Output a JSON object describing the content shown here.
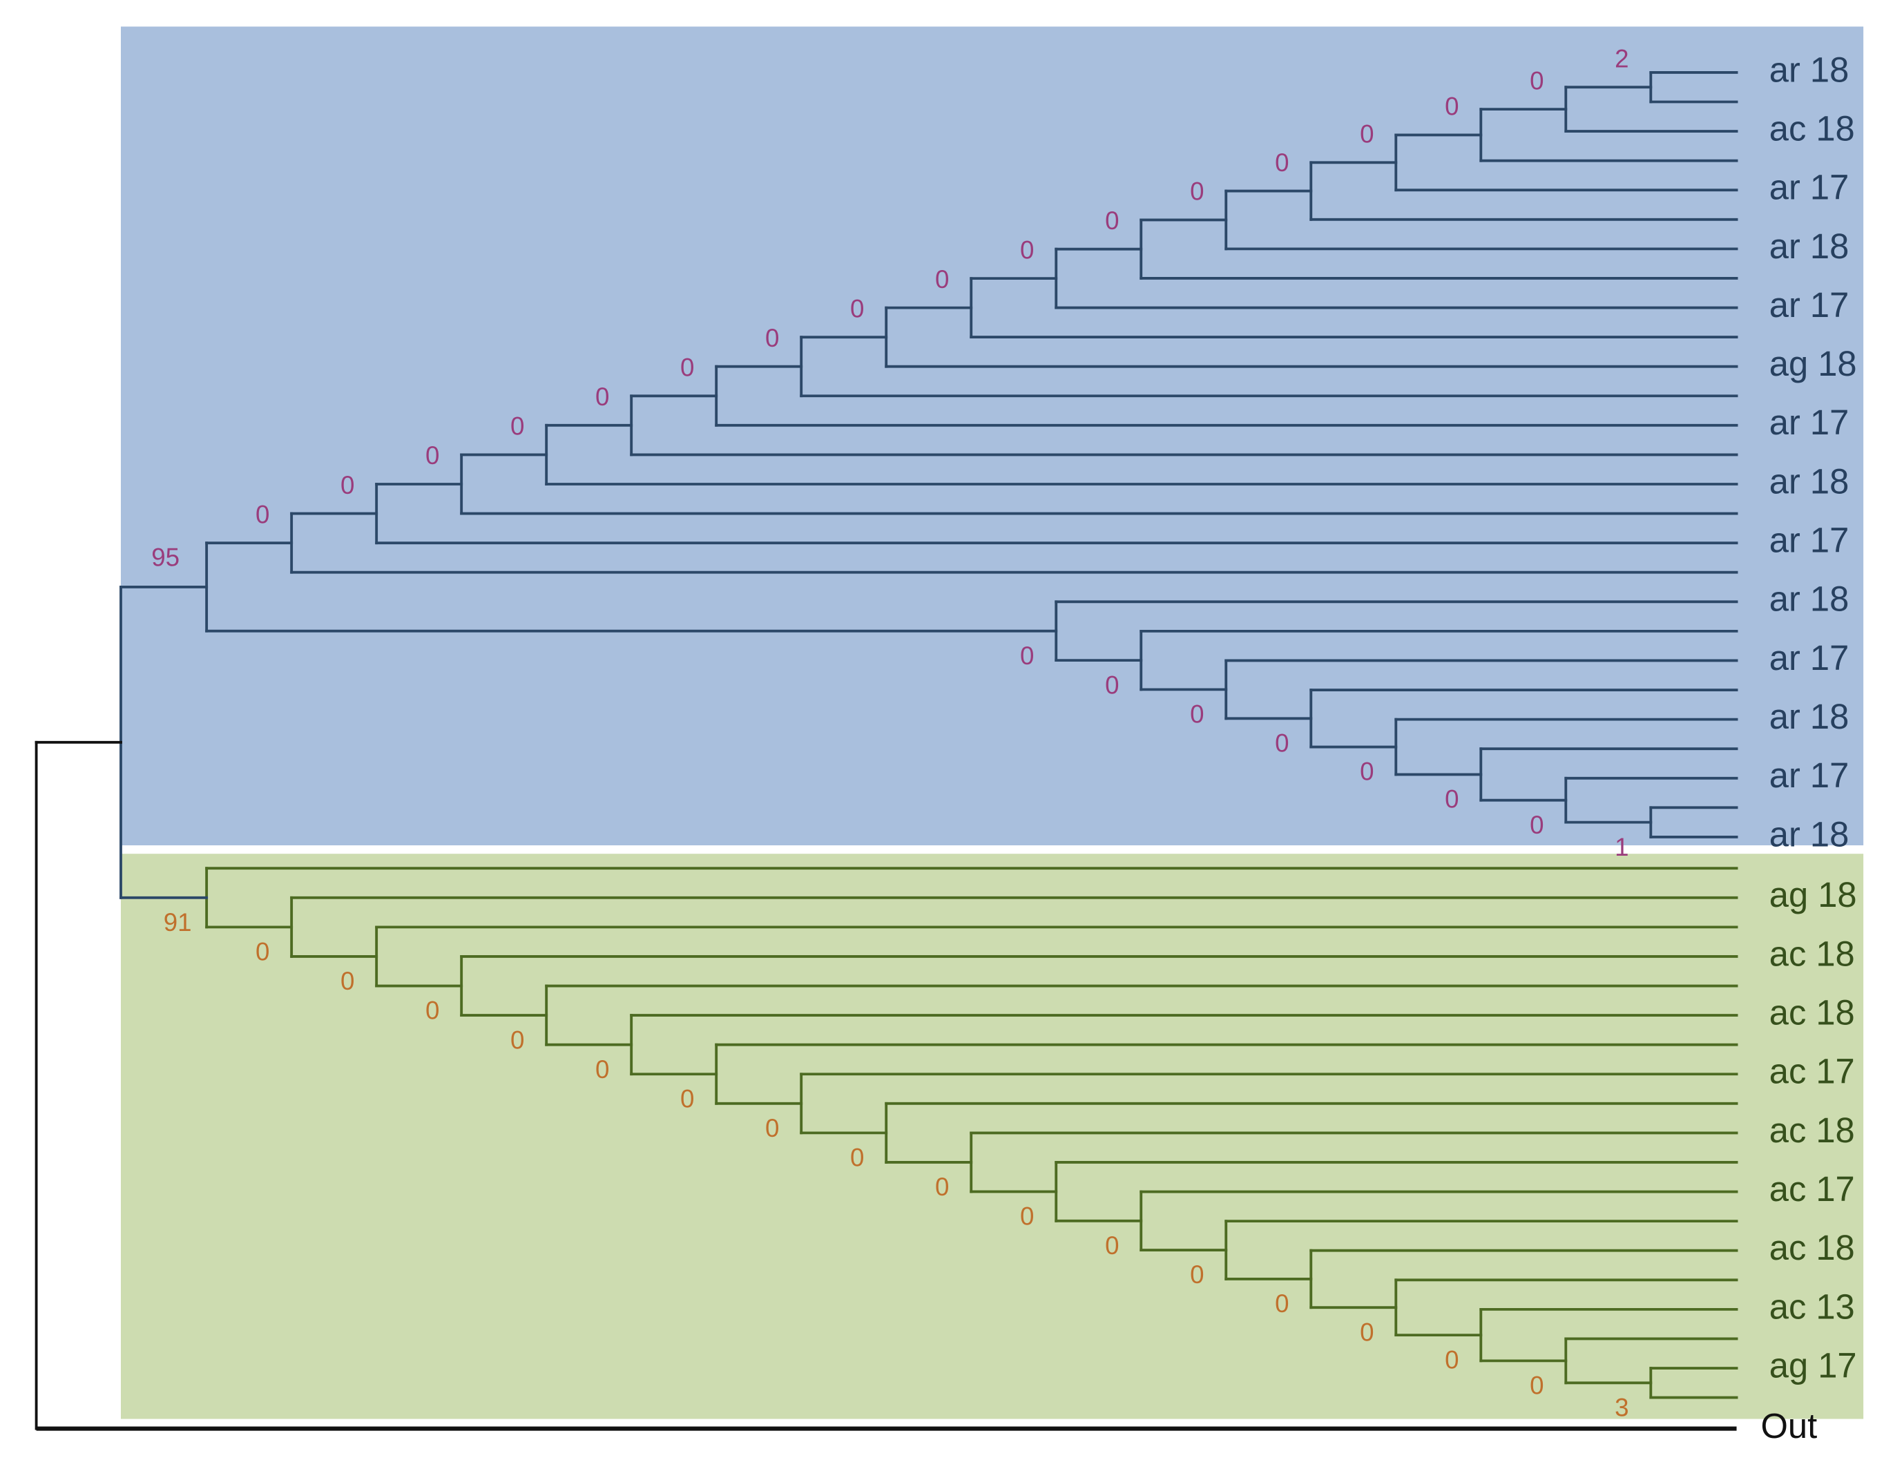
{
  "blue_clade": {
    "support": 95,
    "upper_node_supports": [
      0,
      0,
      0,
      0,
      0,
      0,
      0,
      0,
      0,
      0,
      0,
      0,
      0,
      0,
      0,
      0,
      2
    ],
    "lower_node_supports": [
      0,
      0,
      0,
      0,
      0,
      0,
      0,
      1
    ],
    "leaf_labels": [
      "ar 18",
      "ac 18",
      "ar 17",
      "ar 18",
      "ar 17",
      "ag 18",
      "ar 17",
      "ar 18",
      "ar 17",
      "ar 18",
      "ar 17",
      "ar 18",
      "ar 17",
      "ar 18"
    ]
  },
  "green_clade": {
    "support": 91,
    "node_supports": [
      0,
      0,
      0,
      0,
      0,
      0,
      0,
      0,
      0,
      0,
      0,
      0,
      0,
      0,
      0,
      0,
      3
    ],
    "leaf_labels": [
      "ag 18",
      "ac 18",
      "ac 18",
      "ac 17",
      "ac 18",
      "ac 17",
      "ac 18",
      "ac 13",
      "ag 17"
    ]
  },
  "outgroup_label": "Out"
}
